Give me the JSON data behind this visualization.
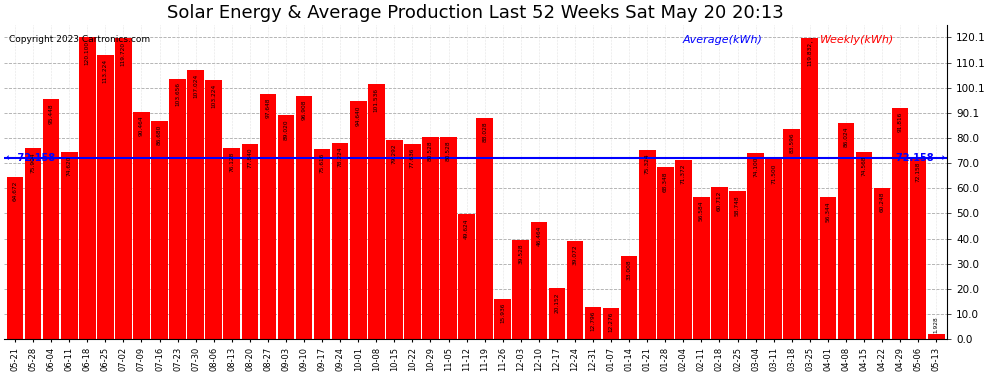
{
  "title": "Solar Energy & Average Production Last 52 Weeks Sat May 20 20:13",
  "copyright": "Copyright 2023 Cartronics.com",
  "average_label": "Average(kWh)",
  "weekly_label": "Weekly(kWh)",
  "average_value": 72.158,
  "ylim": [
    0,
    125
  ],
  "ytick_vals": [
    0.0,
    10.0,
    20.0,
    30.0,
    40.0,
    50.0,
    60.0,
    70.0,
    80.0,
    90.1,
    100.1,
    110.1,
    120.1
  ],
  "bar_color": "#ff0000",
  "average_line_color": "#0000ff",
  "background_color": "#ffffff",
  "title_fontsize": 13,
  "avg_label_color": "#0000ff",
  "weekly_label_color": "#ff0000",
  "categories": [
    "05-21",
    "05-28",
    "06-04",
    "06-11",
    "06-18",
    "06-25",
    "07-02",
    "07-09",
    "07-16",
    "07-23",
    "07-30",
    "08-06",
    "08-13",
    "08-20",
    "08-27",
    "09-03",
    "09-10",
    "09-17",
    "09-24",
    "10-01",
    "10-08",
    "10-15",
    "10-22",
    "10-29",
    "11-05",
    "11-12",
    "11-19",
    "11-26",
    "12-03",
    "12-10",
    "12-17",
    "12-24",
    "12-31",
    "01-07",
    "01-14",
    "01-21",
    "01-28",
    "02-04",
    "02-11",
    "02-18",
    "02-25",
    "03-04",
    "03-11",
    "03-18",
    "03-25",
    "04-01",
    "04-08",
    "04-15",
    "04-22",
    "04-29",
    "05-06",
    "05-13"
  ],
  "values": [
    64.672,
    75.904,
    95.448,
    74.62,
    120.1,
    113.224,
    119.72,
    90.464,
    86.68,
    103.656,
    107.024,
    103.224,
    76.128,
    77.84,
    97.648,
    89.02,
    96.908,
    75.616,
    78.224,
    94.64,
    101.536,
    79.292,
    77.636,
    80.528,
    80.528,
    49.624,
    88.028,
    15.936,
    39.528,
    46.464,
    20.152,
    39.072,
    12.796,
    12.276,
    33.008,
    75.324,
    68.348,
    71.372,
    56.584,
    60.712,
    58.748,
    74.1,
    71.5,
    83.596,
    119.832,
    56.344,
    86.024,
    74.568,
    60.248,
    91.816,
    72.158,
    1.928
  ]
}
